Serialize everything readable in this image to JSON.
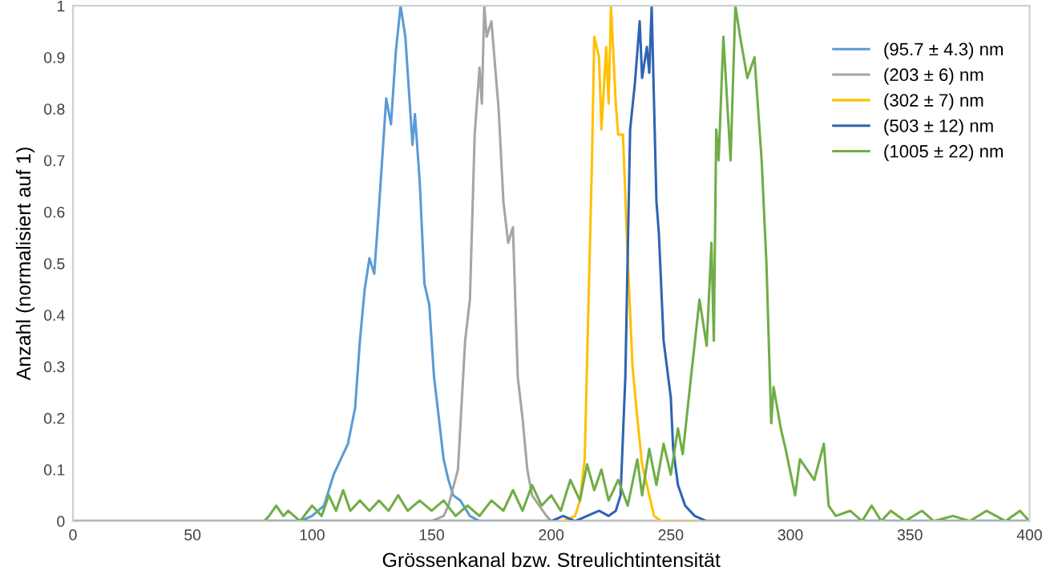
{
  "chart_data": {
    "type": "line",
    "xlabel": "Grössenkanal bzw. Streulichtintensität",
    "ylabel": "Anzahl (normalisiert auf 1)",
    "xlim": [
      0,
      400
    ],
    "ylim": [
      0,
      1
    ],
    "xticks": [
      0,
      50,
      100,
      150,
      200,
      250,
      300,
      350,
      400
    ],
    "yticks": [
      0,
      0.1,
      0.2,
      0.3,
      0.4,
      0.5,
      0.6,
      0.7,
      0.8,
      0.9,
      1
    ],
    "grid": false,
    "legend": "top right",
    "marker": "none",
    "line_style": "solid",
    "series": [
      {
        "name": "(95.7 ± 4.3) nm",
        "color": "#5b9bd5",
        "x": [
          0,
          95,
          100,
          105,
          109,
          112,
          115,
          118,
          120,
          122,
          124,
          126,
          128,
          131,
          133,
          135,
          137,
          139,
          141,
          142,
          143,
          145,
          147,
          149,
          151,
          153,
          155,
          157,
          159,
          162,
          166,
          170,
          400
        ],
        "values": [
          0,
          0,
          0.01,
          0.03,
          0.09,
          0.12,
          0.15,
          0.22,
          0.35,
          0.45,
          0.51,
          0.48,
          0.61,
          0.82,
          0.77,
          0.91,
          1.0,
          0.94,
          0.8,
          0.73,
          0.79,
          0.66,
          0.46,
          0.42,
          0.28,
          0.2,
          0.12,
          0.08,
          0.05,
          0.04,
          0.01,
          0,
          0
        ]
      },
      {
        "name": "(203 ± 6) nm",
        "color": "#a5a5a5",
        "x": [
          0,
          150,
          155,
          157,
          161,
          164,
          166,
          168,
          170,
          171,
          172,
          173,
          175,
          178,
          180,
          182,
          184,
          186,
          188,
          190,
          192,
          195,
          198,
          200,
          400
        ],
        "values": [
          0,
          0,
          0.01,
          0.03,
          0.1,
          0.35,
          0.43,
          0.75,
          0.88,
          0.81,
          1.0,
          0.94,
          0.97,
          0.8,
          0.62,
          0.54,
          0.57,
          0.28,
          0.2,
          0.1,
          0.05,
          0.03,
          0.01,
          0,
          0
        ]
      },
      {
        "name": "(302 ± 7) nm",
        "color": "#ffc000",
        "x": [
          0,
          205,
          210,
          212,
          214,
          217,
          218,
          220,
          221,
          223,
          224,
          225,
          227,
          228,
          230,
          232,
          234,
          236,
          238,
          240,
          243,
          246,
          250,
          400
        ],
        "values": [
          0,
          0,
          0.01,
          0.04,
          0.12,
          0.69,
          0.94,
          0.9,
          0.76,
          0.92,
          0.81,
          1.0,
          0.81,
          0.75,
          0.75,
          0.51,
          0.3,
          0.2,
          0.11,
          0.07,
          0.01,
          0,
          0,
          0
        ]
      },
      {
        "name": "(503 ± 12) nm",
        "color": "#2e64b4",
        "x": [
          0,
          200,
          205,
          210,
          215,
          220,
          224,
          227,
          229,
          231,
          233,
          235,
          237,
          238,
          240,
          241,
          242,
          244,
          245,
          247,
          250,
          251,
          253,
          256,
          260,
          265,
          400
        ],
        "values": [
          0,
          0,
          0.01,
          0,
          0.01,
          0.02,
          0.01,
          0.02,
          0.05,
          0.28,
          0.76,
          0.85,
          0.97,
          0.86,
          0.92,
          0.87,
          1.0,
          0.62,
          0.56,
          0.35,
          0.24,
          0.14,
          0.07,
          0.03,
          0.01,
          0,
          0
        ]
      },
      {
        "name": "(1005 ± 22) nm",
        "color": "#70ad47",
        "x": [
          0,
          80,
          82,
          85,
          88,
          90,
          95,
          100,
          104,
          107,
          110,
          113,
          116,
          120,
          124,
          128,
          132,
          136,
          140,
          145,
          150,
          155,
          160,
          165,
          170,
          175,
          180,
          184,
          188,
          192,
          196,
          200,
          204,
          208,
          212,
          215,
          218,
          221,
          224,
          228,
          232,
          236,
          238,
          241,
          244,
          247,
          250,
          253,
          255,
          258,
          262,
          265,
          267,
          268,
          269,
          270,
          272,
          275,
          277,
          279,
          282,
          285,
          288,
          290,
          292,
          293,
          296,
          298,
          302,
          304,
          307,
          310,
          314,
          316,
          319,
          325,
          330,
          334,
          338,
          342,
          348,
          355,
          360,
          368,
          375,
          382,
          390,
          396,
          400
        ],
        "values": [
          0,
          0,
          0.01,
          0.03,
          0.01,
          0.02,
          0,
          0.03,
          0.01,
          0.05,
          0.02,
          0.06,
          0.02,
          0.04,
          0.02,
          0.04,
          0.02,
          0.05,
          0.02,
          0.04,
          0.02,
          0.04,
          0.01,
          0.03,
          0.01,
          0.04,
          0.02,
          0.06,
          0.02,
          0.07,
          0.03,
          0.05,
          0.02,
          0.08,
          0.04,
          0.11,
          0.06,
          0.1,
          0.04,
          0.08,
          0.03,
          0.12,
          0.05,
          0.14,
          0.07,
          0.15,
          0.09,
          0.18,
          0.13,
          0.26,
          0.43,
          0.34,
          0.54,
          0.35,
          0.76,
          0.7,
          0.94,
          0.7,
          1.0,
          0.94,
          0.86,
          0.9,
          0.7,
          0.5,
          0.19,
          0.26,
          0.18,
          0.14,
          0.05,
          0.12,
          0.1,
          0.08,
          0.15,
          0.03,
          0.01,
          0.02,
          0,
          0.03,
          0,
          0.02,
          0,
          0.02,
          0,
          0.01,
          0,
          0.02,
          0,
          0.02,
          0
        ]
      }
    ]
  }
}
